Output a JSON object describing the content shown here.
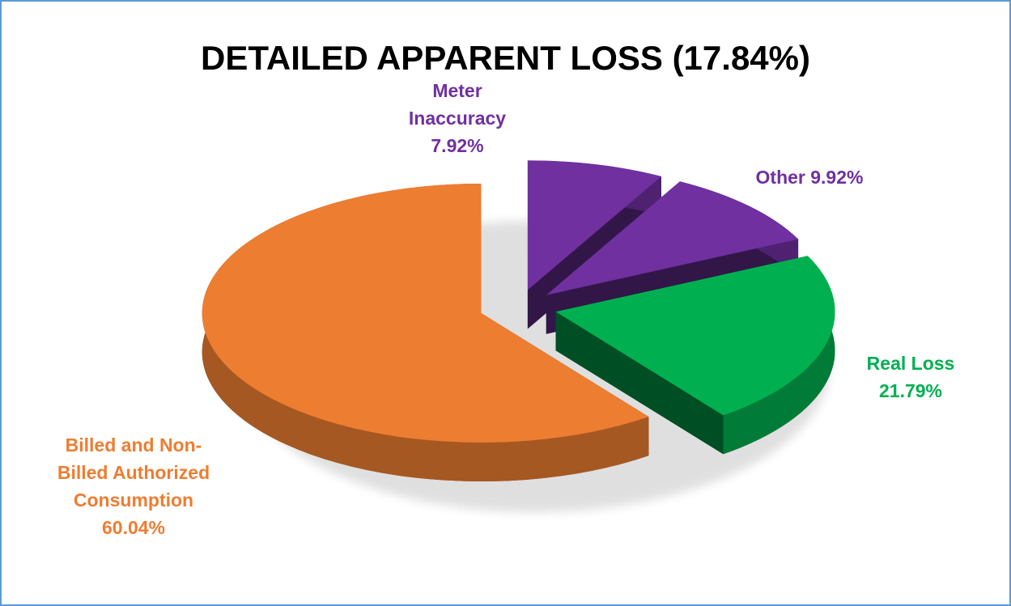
{
  "chart_data": {
    "type": "pie3d",
    "title": "DETAILED APPARENT LOSS (17.84%)",
    "categories": [
      "Meter Inaccuracy",
      "Other",
      "Real Loss",
      "Billed and Non-Billed Authorized Consumption"
    ],
    "values": [
      7.92,
      9.92,
      21.79,
      60.04
    ],
    "value_labels": [
      "7.92%",
      "9.92%",
      "21.79%",
      "60.04%"
    ],
    "colors": [
      "#7030a0",
      "#7030a0",
      "#00b050",
      "#ed7d31"
    ]
  }
}
